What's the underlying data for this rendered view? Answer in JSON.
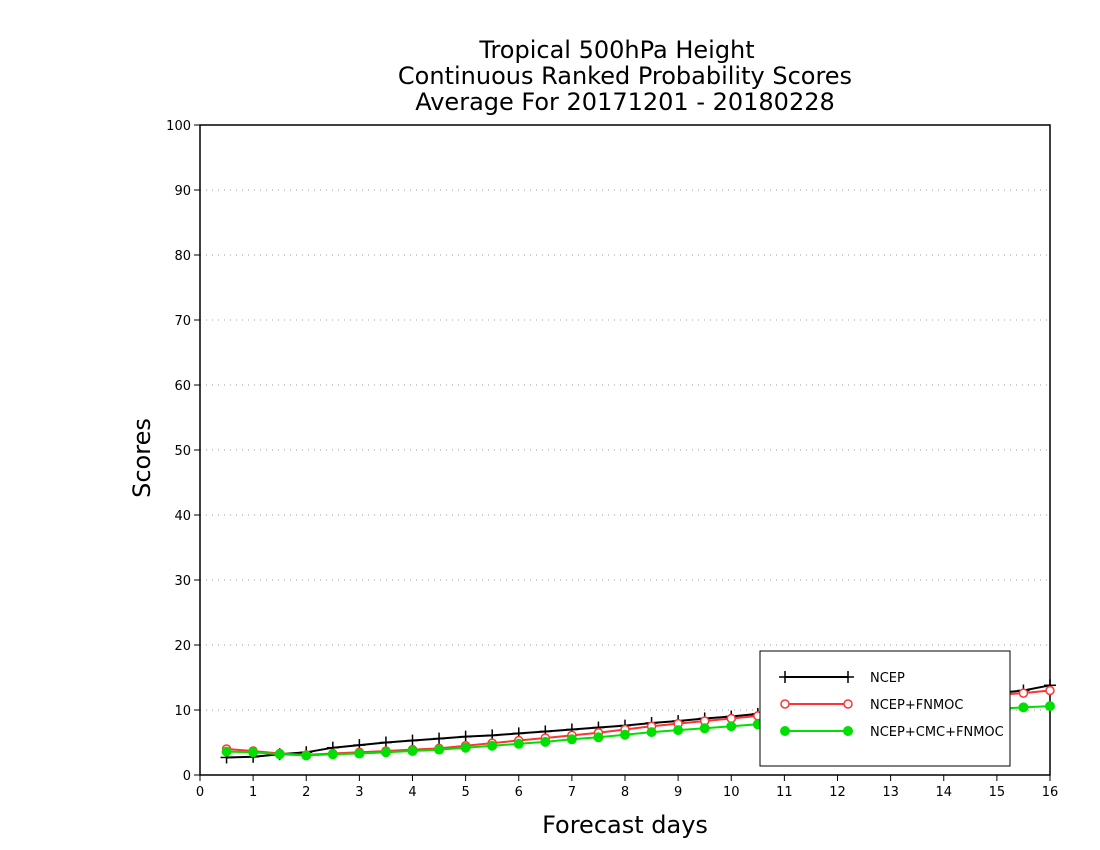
{
  "chart_data": {
    "type": "line",
    "title": [
      "Tropical 500hPa Height",
      "Continuous Ranked Probability Scores",
      "Average For 20171201 - 20180228"
    ],
    "xlabel": "Forecast days",
    "ylabel": "Scores",
    "xlim": [
      0,
      16
    ],
    "ylim": [
      0,
      100
    ],
    "xticks": [
      "0",
      "1",
      "2",
      "3",
      "4",
      "5",
      "6",
      "7",
      "8",
      "9",
      "10",
      "11",
      "12",
      "13",
      "14",
      "15",
      "16"
    ],
    "yticks": [
      "0",
      "10",
      "20",
      "30",
      "40",
      "50",
      "60",
      "70",
      "80",
      "90",
      "100"
    ],
    "grid": "horizontal dotted",
    "legend_position": "bottom-right",
    "x": [
      0.5,
      1,
      1.5,
      2,
      2.5,
      3,
      3.5,
      4,
      4.5,
      5,
      5.5,
      6,
      6.5,
      7,
      7.5,
      8,
      8.5,
      9,
      9.5,
      10,
      10.5,
      11,
      11.5,
      12,
      12.5,
      13,
      13.5,
      14,
      14.5,
      15,
      15.5,
      16
    ],
    "series": [
      {
        "name": "NCEP",
        "color": "#000000",
        "marker": "plus",
        "values": [
          2.7,
          2.8,
          3.2,
          3.5,
          4.2,
          4.6,
          5.0,
          5.3,
          5.6,
          5.9,
          6.1,
          6.4,
          6.7,
          7.0,
          7.3,
          7.6,
          8.0,
          8.3,
          8.7,
          9.0,
          9.4,
          9.7,
          10.0,
          10.3,
          10.6,
          11.0,
          11.4,
          11.8,
          12.2,
          12.6,
          13.0,
          13.8
        ]
      },
      {
        "name": "NCEP+FNMOC",
        "color": "#ff3333",
        "marker": "open-circle",
        "values": [
          4.0,
          3.7,
          3.3,
          3.1,
          3.3,
          3.5,
          3.7,
          3.9,
          4.1,
          4.5,
          4.9,
          5.3,
          5.7,
          6.1,
          6.5,
          7.0,
          7.5,
          7.9,
          8.3,
          8.7,
          9.1,
          9.5,
          9.8,
          10.1,
          10.4,
          10.8,
          11.2,
          11.6,
          12.0,
          12.3,
          12.6,
          13.0
        ]
      },
      {
        "name": "NCEP+CMC+FNMOC",
        "color": "#00e000",
        "marker": "filled-circle",
        "values": [
          3.6,
          3.5,
          3.2,
          3.0,
          3.2,
          3.3,
          3.5,
          3.7,
          3.9,
          4.2,
          4.5,
          4.8,
          5.1,
          5.5,
          5.8,
          6.2,
          6.6,
          6.9,
          7.2,
          7.5,
          7.8,
          8.1,
          8.3,
          8.6,
          8.8,
          9.1,
          9.4,
          9.7,
          10.0,
          10.2,
          10.4,
          10.6
        ]
      }
    ]
  }
}
